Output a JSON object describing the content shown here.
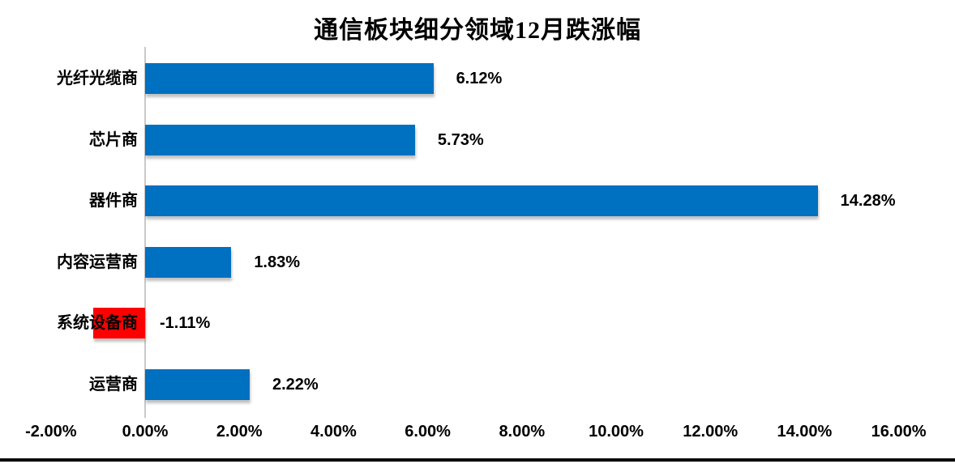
{
  "chart_data": {
    "type": "bar",
    "orientation": "horizontal",
    "title": "通信板块细分领域12月跌涨幅",
    "categories": [
      "光纤光缆商",
      "芯片商",
      "器件商",
      "内容运营商",
      "系统设备商",
      "运营商"
    ],
    "values": [
      6.12,
      5.73,
      14.28,
      1.83,
      -1.11,
      2.22
    ],
    "data_labels": [
      "6.12%",
      "5.73%",
      "14.28%",
      "1.83%",
      "-1.11%",
      "2.22%"
    ],
    "xlabel": "",
    "ylabel": "",
    "xlim": [
      -2,
      16
    ],
    "x_tick_values": [
      -2,
      0,
      2,
      4,
      6,
      8,
      10,
      12,
      14,
      16
    ],
    "x_tick_labels": [
      "-2.00%",
      "0.00%",
      "2.00%",
      "4.00%",
      "6.00%",
      "8.00%",
      "10.00%",
      "12.00%",
      "14.00%",
      "16.00%"
    ],
    "grid": false,
    "legend": null,
    "data_label_position": "outside-end",
    "colors": {
      "bar_positive": "#0070C0",
      "bar_negative": "#FF0000",
      "axis_line": "#C9C9C9",
      "text": "#000000",
      "bottom_rule": "#000000",
      "background": "#FFFFFF"
    }
  }
}
